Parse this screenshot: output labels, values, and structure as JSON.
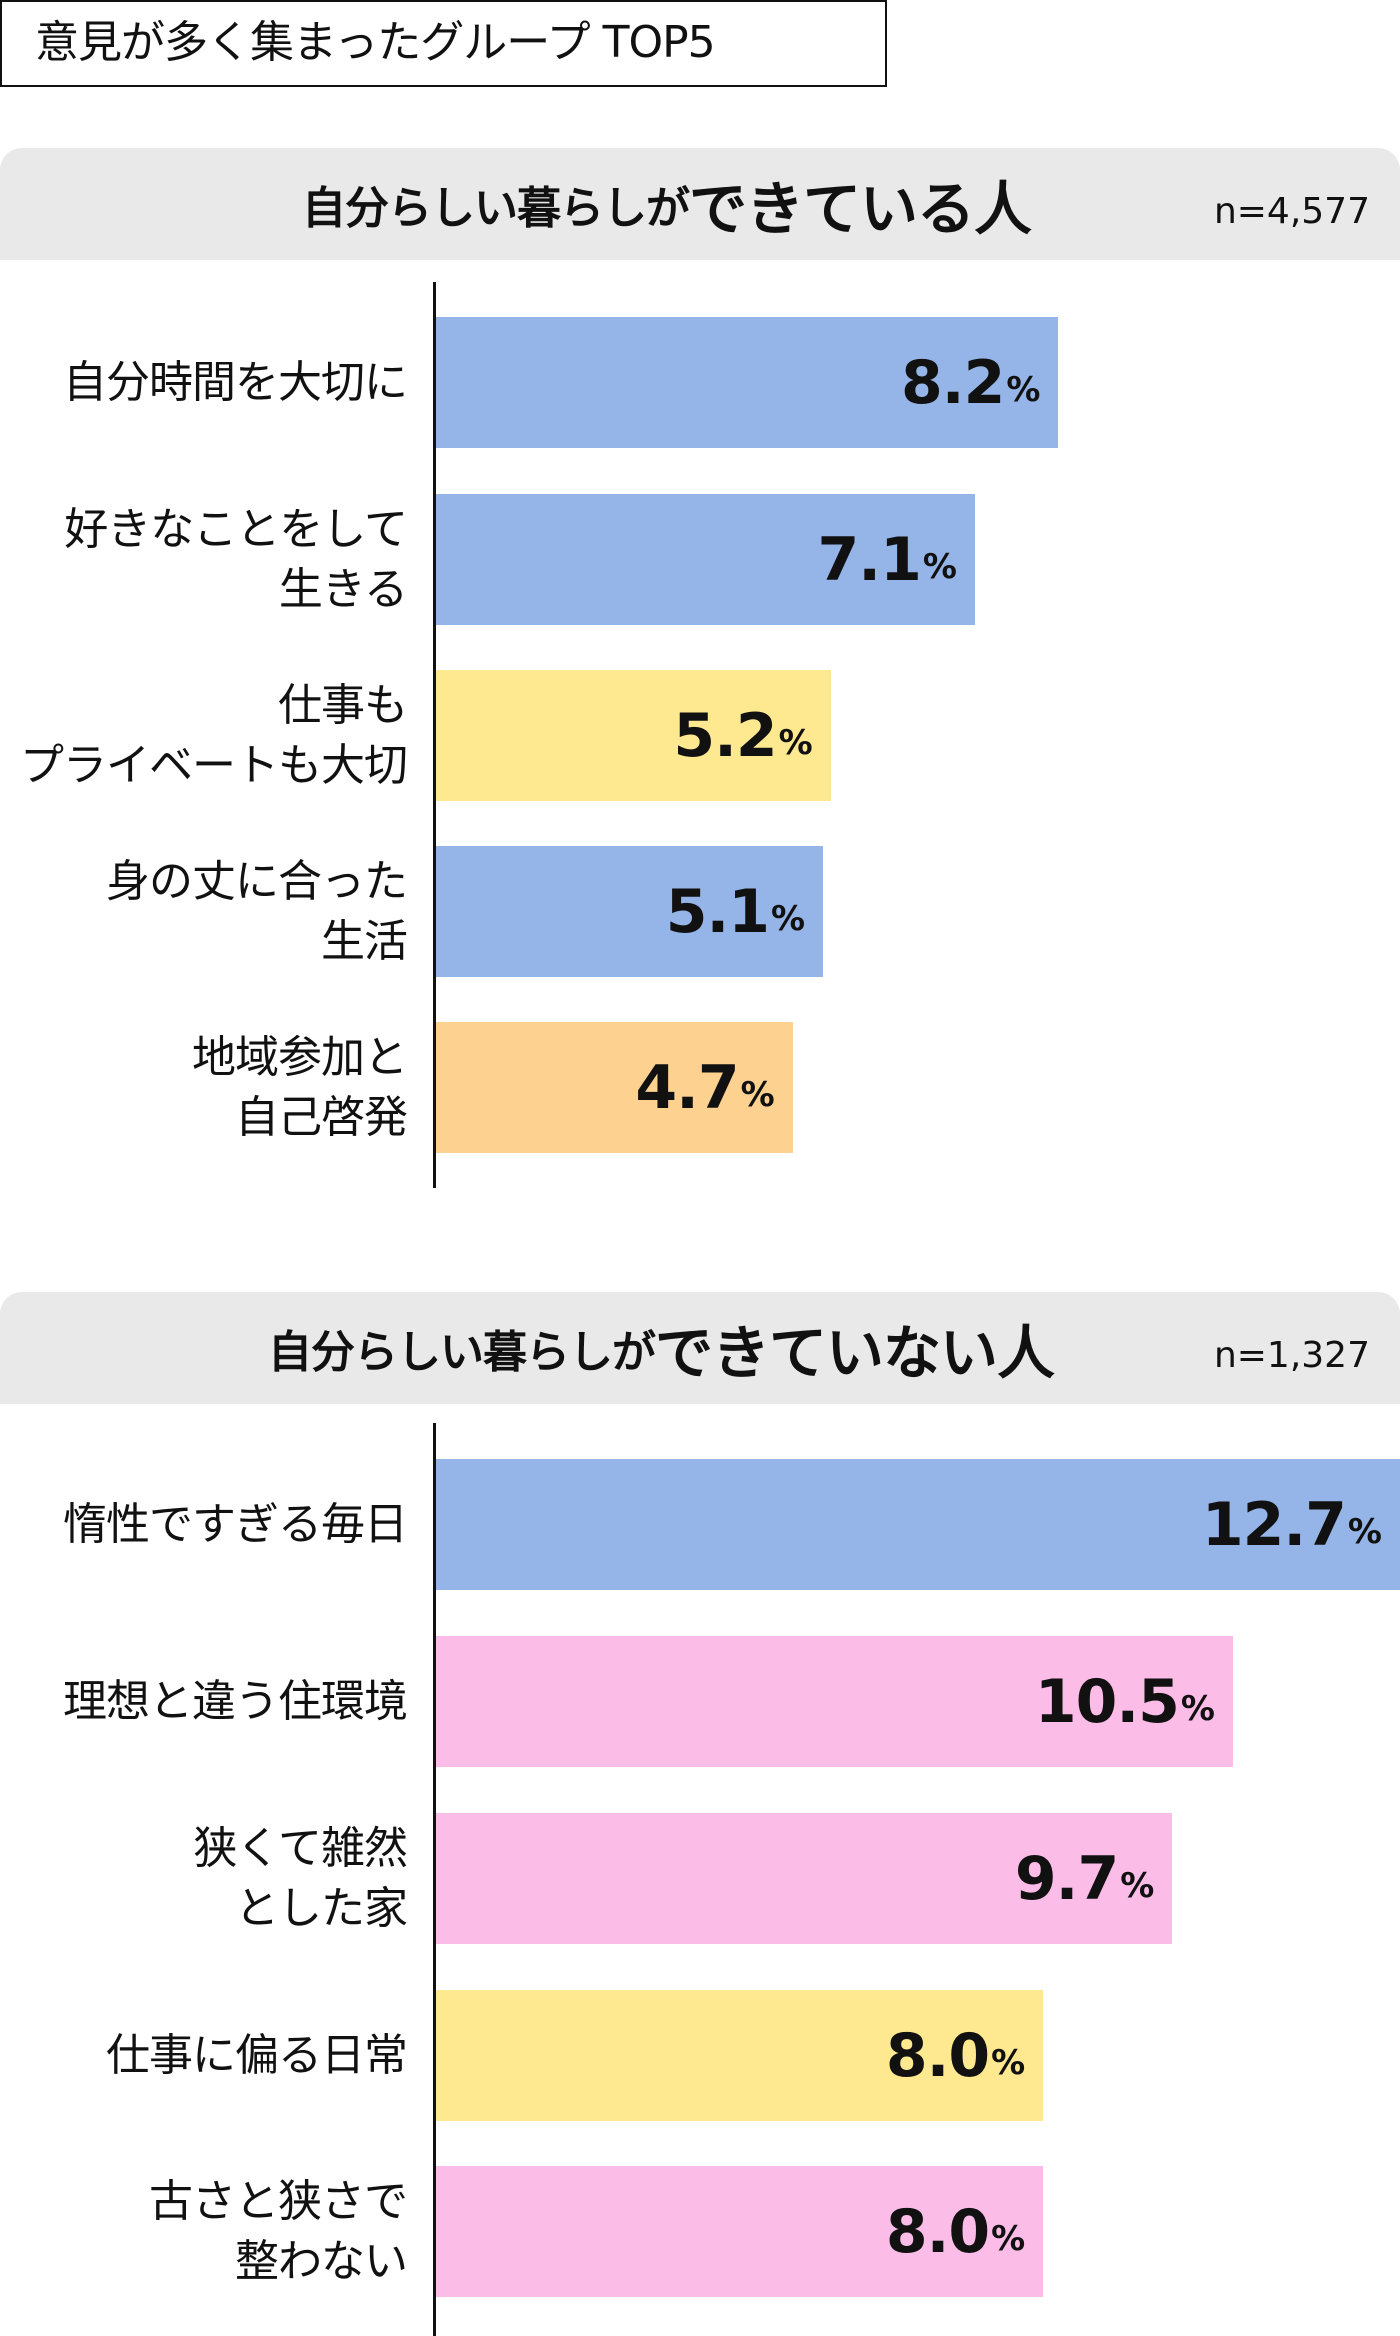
{
  "title": "意見が多く集まったグループ TOP5",
  "colors": {
    "blue": "#95b5e8",
    "yellow": "#fee990",
    "orange": "#fdd18f",
    "pink": "#fbbce8",
    "header_bg": "#e9e9e9"
  },
  "sections": [
    {
      "header_prefix": "自分らしい暮らしが",
      "header_emphasis": "できている人",
      "n_label": "n=4,577",
      "rows": [
        {
          "label": "自分時間を大切に",
          "value": "8.2",
          "unit": "%",
          "color": "blue"
        },
        {
          "label": "好きなことをして\n生きる",
          "value": "7.1",
          "unit": "%",
          "color": "blue"
        },
        {
          "label": "仕事も\nプライベートも大切",
          "value": "5.2",
          "unit": "%",
          "color": "yellow"
        },
        {
          "label": "身の丈に合った\n生活",
          "value": "5.1",
          "unit": "%",
          "color": "blue"
        },
        {
          "label": "地域参加と\n自己啓発",
          "value": "4.7",
          "unit": "%",
          "color": "orange"
        }
      ]
    },
    {
      "header_prefix": "自分らしい暮らしが",
      "header_emphasis": "できていない人",
      "n_label": "n=1,327",
      "rows": [
        {
          "label": "惰性ですぎる毎日",
          "value": "12.7",
          "unit": "%",
          "color": "blue"
        },
        {
          "label": "理想と違う住環境",
          "value": "10.5",
          "unit": "%",
          "color": "pink"
        },
        {
          "label": "狭くて雑然\nとした家",
          "value": "9.7",
          "unit": "%",
          "color": "pink"
        },
        {
          "label": "仕事に偏る日常",
          "value": "8.0",
          "unit": "%",
          "color": "yellow"
        },
        {
          "label": "古さと狭さで\n整わない",
          "value": "8.0",
          "unit": "%",
          "color": "pink"
        }
      ]
    }
  ],
  "chart_data": [
    {
      "type": "bar",
      "orientation": "horizontal",
      "title": "自分らしい暮らしができている人",
      "subtitle": "意見が多く集まったグループ TOP5",
      "n": "n=4,577",
      "categories": [
        "自分時間を大切に",
        "好きなことをして生きる",
        "仕事もプライベートも大切",
        "身の丈に合った生活",
        "地域参加と自己啓発"
      ],
      "values": [
        8.2,
        7.1,
        5.2,
        5.1,
        4.7
      ],
      "unit": "%",
      "bar_colors": [
        "#95b5e8",
        "#95b5e8",
        "#fee990",
        "#95b5e8",
        "#fdd18f"
      ],
      "xlabel": "",
      "ylabel": "",
      "xlim": [
        0,
        12.7
      ],
      "grid": false,
      "legend": null
    },
    {
      "type": "bar",
      "orientation": "horizontal",
      "title": "自分らしい暮らしができていない人",
      "subtitle": "意見が多く集まったグループ TOP5",
      "n": "n=1,327",
      "categories": [
        "惰性ですぎる毎日",
        "理想と違う住環境",
        "狭くて雑然とした家",
        "仕事に偏る日常",
        "古さと狭さで整わない"
      ],
      "values": [
        12.7,
        10.5,
        9.7,
        8.0,
        8.0
      ],
      "unit": "%",
      "bar_colors": [
        "#95b5e8",
        "#fbbce8",
        "#fbbce8",
        "#fee990",
        "#fbbce8"
      ],
      "xlabel": "",
      "ylabel": "",
      "xlim": [
        0,
        12.7
      ],
      "grid": false,
      "legend": null
    }
  ]
}
